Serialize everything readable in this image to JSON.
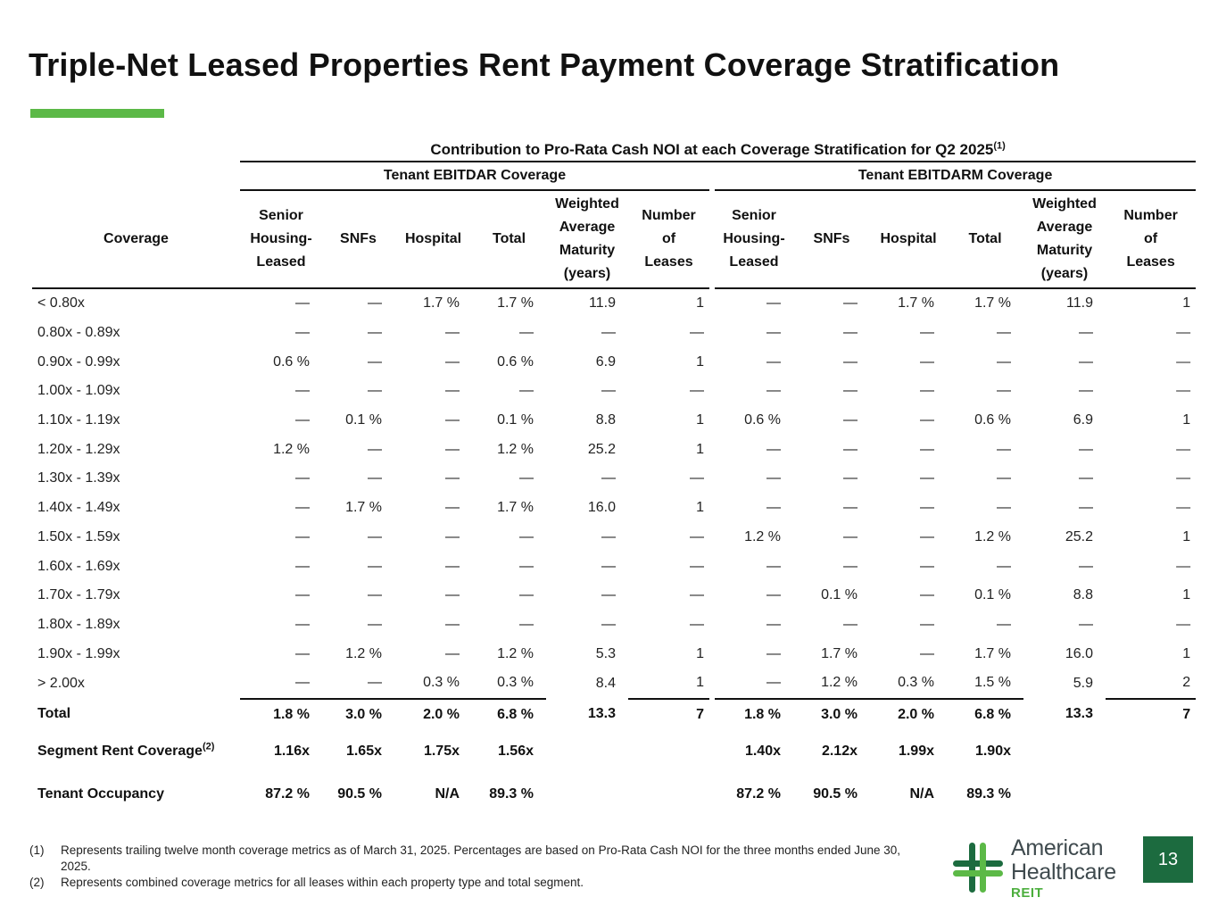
{
  "title": "Triple-Net Leased Properties Rent Payment Coverage Stratification",
  "accent_color": "#5cb947",
  "table": {
    "top_header": "Contribution to Pro-Rata Cash NOI at each Coverage Stratification for Q2 2025",
    "top_header_note": "(1)",
    "group_left": "Tenant EBITDAR Coverage",
    "group_right": "Tenant EBITDARM Coverage",
    "stub_header": "Coverage",
    "col_headers": {
      "senior": [
        "Senior",
        "Housing-",
        "Leased"
      ],
      "snfs": "SNFs",
      "hospital": "Hospital",
      "total": "Total",
      "wam": [
        "Weighted",
        "Average",
        "Maturity",
        "(years)"
      ],
      "num": [
        "Number",
        "of",
        "Leases"
      ]
    },
    "rows": [
      {
        "label": "< 0.80x",
        "l": [
          "—",
          "—",
          "1.7 %",
          "1.7 %",
          "11.9",
          "1"
        ],
        "r": [
          "—",
          "—",
          "1.7 %",
          "1.7 %",
          "11.9",
          "1"
        ]
      },
      {
        "label": "0.80x - 0.89x",
        "l": [
          "—",
          "—",
          "—",
          "—",
          "—",
          "—"
        ],
        "r": [
          "—",
          "—",
          "—",
          "—",
          "—",
          "—"
        ]
      },
      {
        "label": "0.90x - 0.99x",
        "l": [
          "0.6 %",
          "—",
          "—",
          "0.6 %",
          "6.9",
          "1"
        ],
        "r": [
          "—",
          "—",
          "—",
          "—",
          "—",
          "—"
        ]
      },
      {
        "label": "1.00x - 1.09x",
        "l": [
          "—",
          "—",
          "—",
          "—",
          "—",
          "—"
        ],
        "r": [
          "—",
          "—",
          "—",
          "—",
          "—",
          "—"
        ]
      },
      {
        "label": "1.10x - 1.19x",
        "l": [
          "—",
          "0.1 %",
          "—",
          "0.1 %",
          "8.8",
          "1"
        ],
        "r": [
          "0.6 %",
          "—",
          "—",
          "0.6 %",
          "6.9",
          "1"
        ]
      },
      {
        "label": "1.20x - 1.29x",
        "l": [
          "1.2 %",
          "—",
          "—",
          "1.2 %",
          "25.2",
          "1"
        ],
        "r": [
          "—",
          "—",
          "—",
          "—",
          "—",
          "—"
        ]
      },
      {
        "label": "1.30x - 1.39x",
        "l": [
          "—",
          "—",
          "—",
          "—",
          "—",
          "—"
        ],
        "r": [
          "—",
          "—",
          "—",
          "—",
          "—",
          "—"
        ]
      },
      {
        "label": "1.40x - 1.49x",
        "l": [
          "—",
          "1.7 %",
          "—",
          "1.7 %",
          "16.0",
          "1"
        ],
        "r": [
          "—",
          "—",
          "—",
          "—",
          "—",
          "—"
        ]
      },
      {
        "label": "1.50x - 1.59x",
        "l": [
          "—",
          "—",
          "—",
          "—",
          "—",
          "—"
        ],
        "r": [
          "1.2 %",
          "—",
          "—",
          "1.2 %",
          "25.2",
          "1"
        ]
      },
      {
        "label": "1.60x - 1.69x",
        "l": [
          "—",
          "—",
          "—",
          "—",
          "—",
          "—"
        ],
        "r": [
          "—",
          "—",
          "—",
          "—",
          "—",
          "—"
        ]
      },
      {
        "label": "1.70x - 1.79x",
        "l": [
          "—",
          "—",
          "—",
          "—",
          "—",
          "—"
        ],
        "r": [
          "—",
          "0.1 %",
          "—",
          "0.1 %",
          "8.8",
          "1"
        ]
      },
      {
        "label": "1.80x - 1.89x",
        "l": [
          "—",
          "—",
          "—",
          "—",
          "—",
          "—"
        ],
        "r": [
          "—",
          "—",
          "—",
          "—",
          "—",
          "—"
        ]
      },
      {
        "label": "1.90x - 1.99x",
        "l": [
          "—",
          "1.2 %",
          "—",
          "1.2 %",
          "5.3",
          "1"
        ],
        "r": [
          "—",
          "1.7 %",
          "—",
          "1.7 %",
          "16.0",
          "1"
        ]
      },
      {
        "label": "> 2.00x",
        "l": [
          "—",
          "—",
          "0.3 %",
          "0.3 %",
          "8.4",
          "1"
        ],
        "r": [
          "—",
          "1.2 %",
          "0.3 %",
          "1.5 %",
          "5.9",
          "2"
        ]
      }
    ],
    "total": {
      "label": "Total",
      "l": [
        "1.8 %",
        "3.0 %",
        "2.0 %",
        "6.8 %",
        "13.3",
        "7"
      ],
      "r": [
        "1.8 %",
        "3.0 %",
        "2.0 %",
        "6.8 %",
        "13.3",
        "7"
      ]
    },
    "segment": {
      "label": "Segment Rent Coverage",
      "note": "(2)",
      "l": [
        "1.16x",
        "1.65x",
        "1.75x",
        "1.56x",
        "",
        ""
      ],
      "r": [
        "1.40x",
        "2.12x",
        "1.99x",
        "1.90x",
        "",
        ""
      ]
    },
    "occupancy": {
      "label": "Tenant Occupancy",
      "l": [
        "87.2 %",
        "90.5 %",
        "N/A",
        "89.3 %",
        "",
        ""
      ],
      "r": [
        "87.2 %",
        "90.5 %",
        "N/A",
        "89.3 %",
        "",
        ""
      ]
    }
  },
  "footnotes": [
    {
      "mark": "(1)",
      "text": "Represents trailing twelve month coverage metrics as of March 31, 2025. Percentages are based on Pro-Rata Cash NOI for the three months ended June 30, 2025."
    },
    {
      "mark": "(2)",
      "text": "Represents combined coverage metrics for all leases within each property type and total segment."
    }
  ],
  "logo": {
    "line1": "American",
    "line2": "Healthcare",
    "line3": "REIT",
    "icon": "cross-logo-icon",
    "dark_green": "#1c6b3f",
    "light_green": "#5cb947"
  },
  "page_number": "13"
}
